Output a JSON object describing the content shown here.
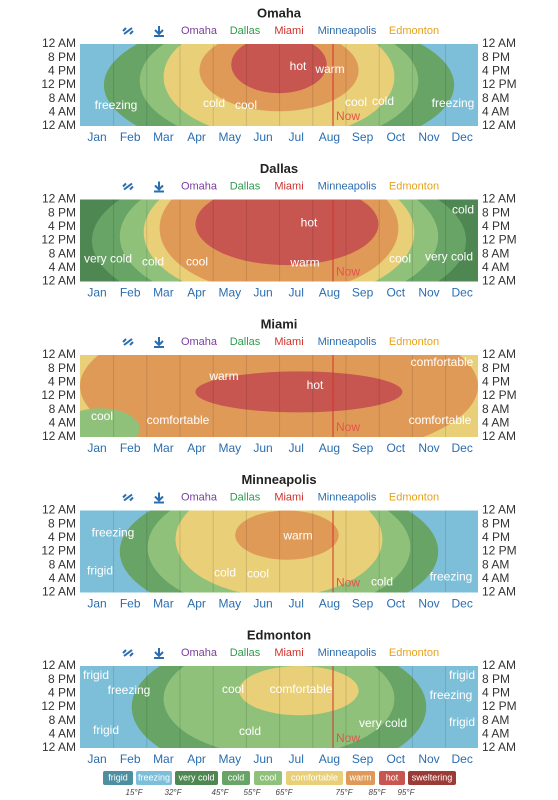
{
  "cities": [
    "Omaha",
    "Dallas",
    "Miami",
    "Minneapolis",
    "Edmonton"
  ],
  "hours": [
    "12 AM",
    "8 PM",
    "4 PM",
    "12 PM",
    "8 AM",
    "4 AM",
    "12 AM"
  ],
  "months": [
    "Jan",
    "Feb",
    "Mar",
    "Apr",
    "May",
    "Jun",
    "Jul",
    "Aug",
    "Sep",
    "Oct",
    "Nov",
    "Dec"
  ],
  "now": "Now",
  "panels": [
    {
      "region_labels": [
        "hot",
        "warm",
        "freezing",
        "cold",
        "cool",
        "cool",
        "cold",
        "freezing"
      ]
    },
    {
      "region_labels": [
        "cold",
        "hot",
        "very cold",
        "cold",
        "cool",
        "warm",
        "cool",
        "very cold"
      ]
    },
    {
      "region_labels": [
        "comfortable",
        "warm",
        "hot",
        "cool",
        "comfortable",
        "comfortable"
      ]
    },
    {
      "region_labels": [
        "freezing",
        "warm",
        "frigid",
        "cold",
        "cool",
        "cold",
        "freezing"
      ]
    },
    {
      "region_labels": [
        "frigid",
        "frigid",
        "freezing",
        "cool",
        "comfortable",
        "freezing",
        "frigid",
        "very cold",
        "cold",
        "frigid"
      ]
    }
  ],
  "legend": {
    "categories": [
      "frigid",
      "freezing",
      "very cold",
      "cold",
      "cool",
      "comfortable",
      "warm",
      "hot",
      "sweltering"
    ],
    "thresholds": [
      "15°F",
      "32°F",
      "45°F",
      "55°F",
      "65°F",
      "75°F",
      "85°F",
      "95°F"
    ]
  }
}
